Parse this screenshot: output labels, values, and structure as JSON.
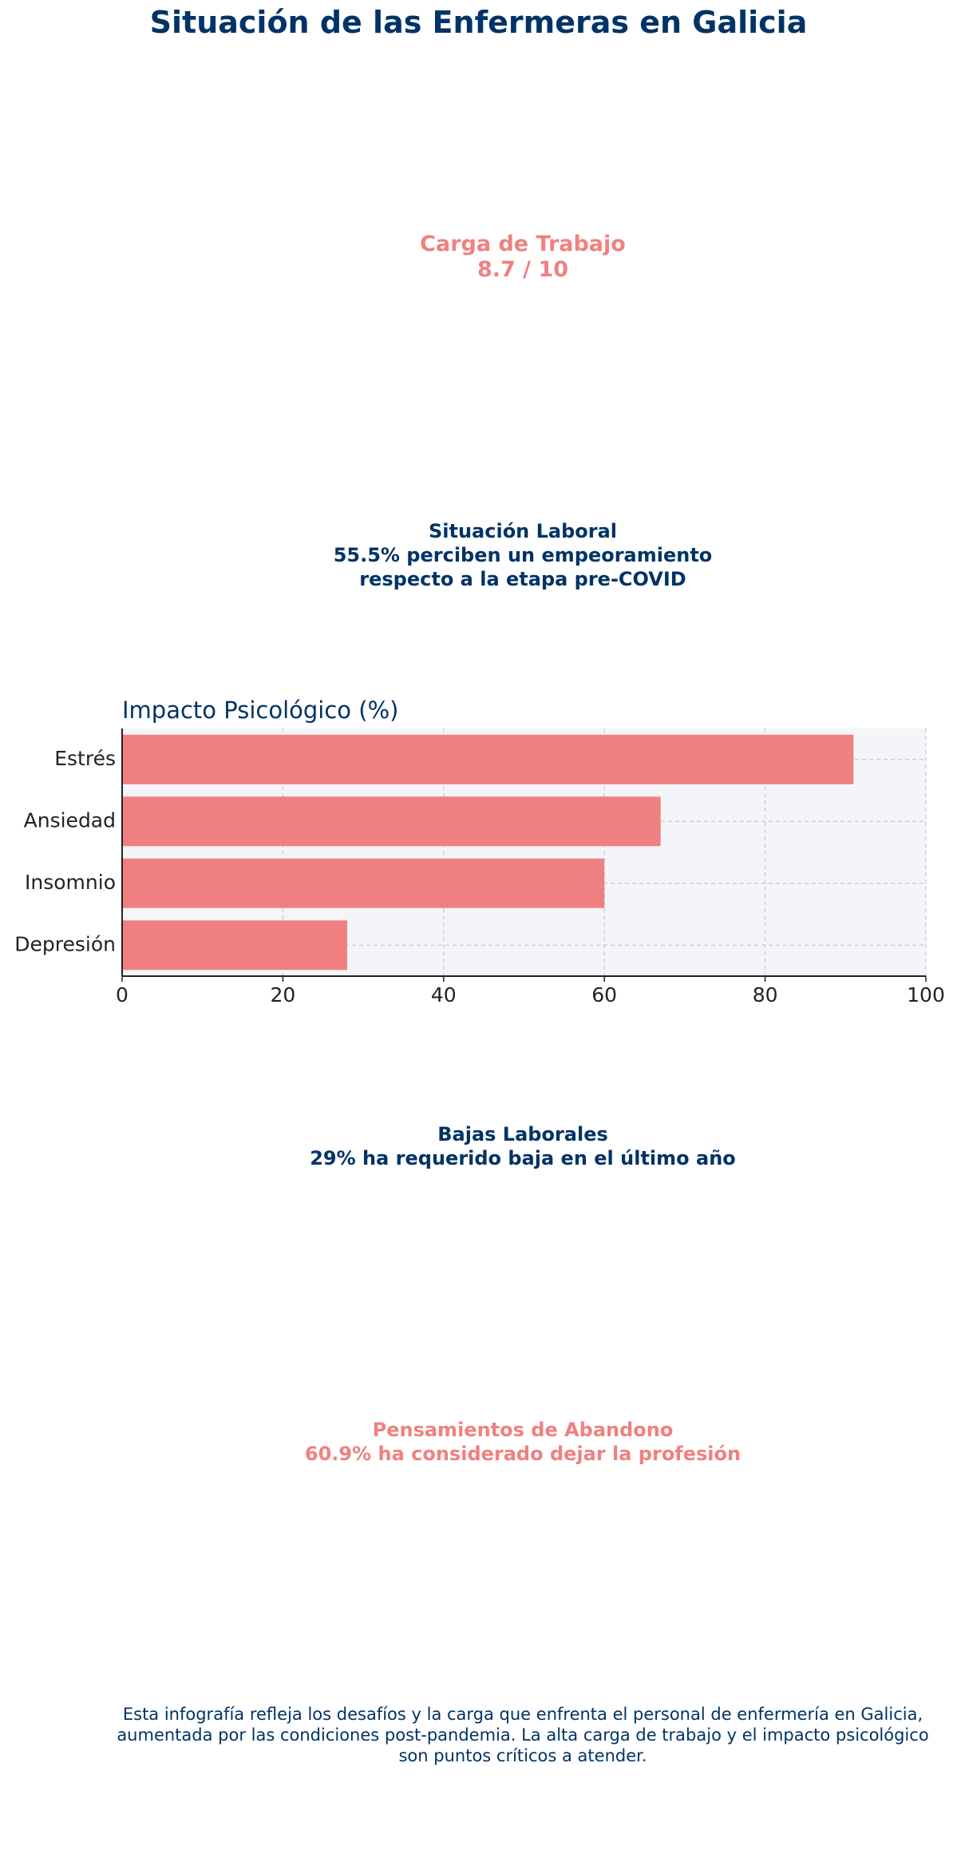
{
  "title": "Situación de las Enfermeras en Galicia",
  "workload": {
    "label": "Carga de Trabajo",
    "value": "8.7 / 10"
  },
  "employment": {
    "label": "Situación Laboral",
    "line1": "55.5% perciben un empeoramiento",
    "line2": "respecto a la etapa pre-COVID"
  },
  "sick_leave": {
    "label": "Bajas Laborales",
    "value": "29% ha requerido baja en el último año"
  },
  "quitting": {
    "label": "Pensamientos de Abandono",
    "value": "60.9% ha considerado dejar la profesión"
  },
  "footer": {
    "line1": "Esta infografía refleja los desafíos y la carga que enfrenta el personal de enfermería en Galicia,",
    "line2": "aumentada por las condiciones post-pandemia. La alta carga de trabajo y el impacto psicológico",
    "line3": "son puntos críticos a atender."
  },
  "colors": {
    "accent": "#f08080",
    "navy": "#003366",
    "plot_bg": "#f4f5f9"
  },
  "chart_data": {
    "type": "bar",
    "orientation": "horizontal",
    "title": "Impacto Psicológico (%)",
    "categories": [
      "Estrés",
      "Ansiedad",
      "Insomnio",
      "Depresión"
    ],
    "values": [
      91,
      67,
      60,
      28
    ],
    "xlim": [
      0,
      100
    ],
    "xticks": [
      0,
      20,
      40,
      60,
      80,
      100
    ],
    "grid": true,
    "xlabel": "",
    "ylabel": ""
  }
}
